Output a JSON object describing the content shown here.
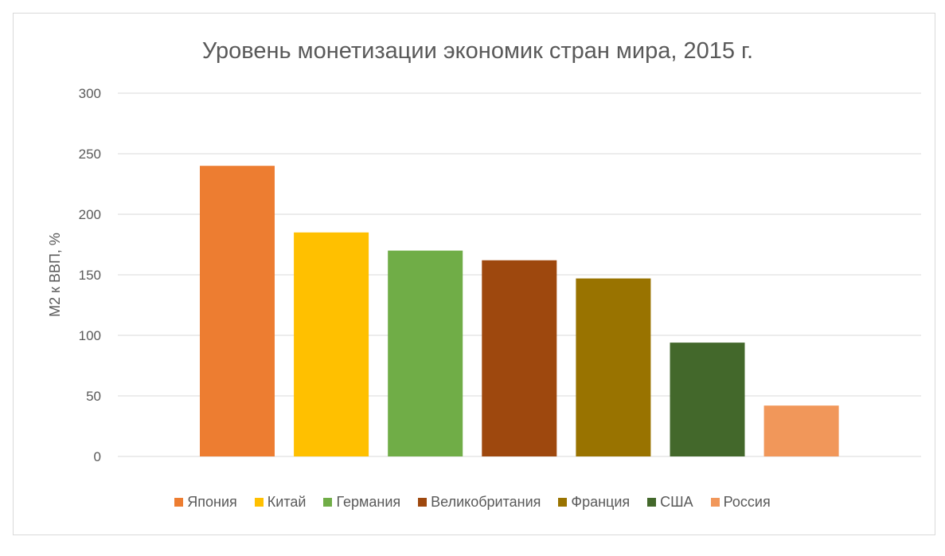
{
  "chart_data": {
    "type": "bar",
    "title": "Уровень монетизации экономик стран мира, 2015 г.",
    "xlabel": "",
    "ylabel": "М2 к ВВП, %",
    "ylim": [
      0,
      300
    ],
    "yticks": [
      0,
      50,
      100,
      150,
      200,
      250,
      300
    ],
    "grid": true,
    "legend_position": "bottom",
    "categories": [
      "Япония",
      "Китай",
      "Германия",
      "Великобритания",
      "Франция",
      "США",
      "Россия"
    ],
    "values": [
      240,
      185,
      170,
      162,
      147,
      94,
      42
    ],
    "colors": [
      "#ed7d31",
      "#ffc000",
      "#70ad47",
      "#9e480e",
      "#997300",
      "#43682b",
      "#f1975a"
    ]
  }
}
